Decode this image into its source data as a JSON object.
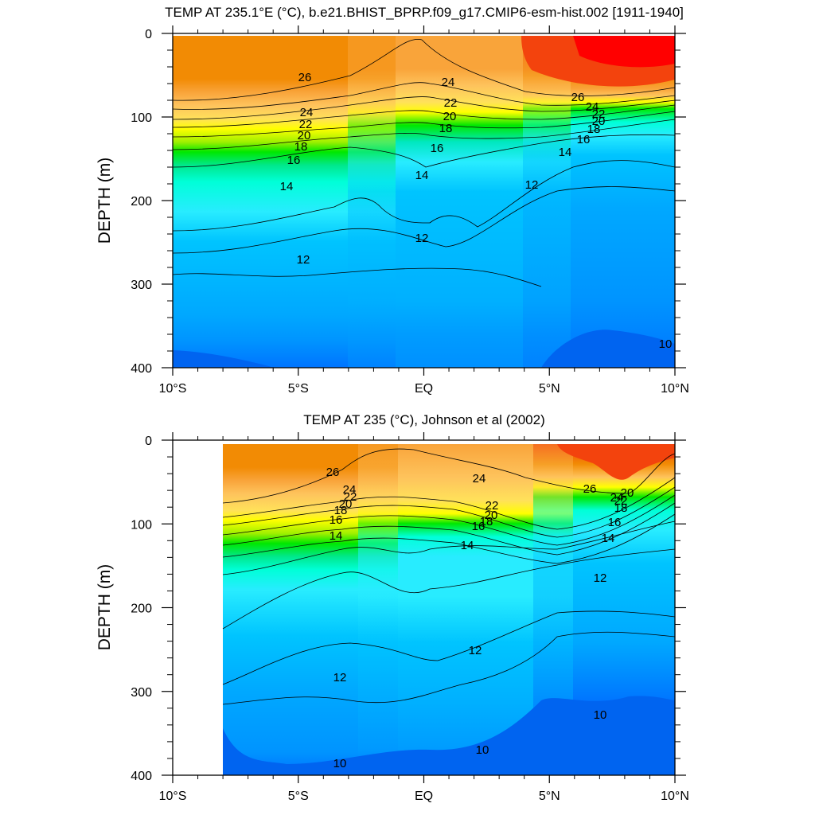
{
  "chart_data": [
    {
      "type": "heatmap",
      "title": "TEMP AT 235.1°E (°C), b.e21.BHIST_BPRP.f09_g17.CMIP6-esm-hist.002 [1911-1940]",
      "ylabel": "DEPTH (m)",
      "xlim": [
        -10,
        10
      ],
      "ylim": [
        400,
        0
      ],
      "x_ticks": [
        {
          "value": -10,
          "label": "10°S"
        },
        {
          "value": -5,
          "label": "5°S"
        },
        {
          "value": 0,
          "label": "EQ"
        },
        {
          "value": 5,
          "label": "5°N"
        },
        {
          "value": 10,
          "label": "10°N"
        }
      ],
      "y_ticks": [
        0,
        100,
        200,
        300,
        400
      ],
      "data_xlim": [
        -10,
        10
      ],
      "contour_labels": [
        {
          "label": "26",
          "x": -4.8,
          "depth": 55
        },
        {
          "label": "24",
          "x": -4.7,
          "depth": 95
        },
        {
          "label": "22",
          "x": -4.8,
          "depth": 110
        },
        {
          "label": "20",
          "x": -4.9,
          "depth": 123
        },
        {
          "label": "18",
          "x": -5.0,
          "depth": 137
        },
        {
          "label": "16",
          "x": -5.2,
          "depth": 152
        },
        {
          "label": "14",
          "x": -5.5,
          "depth": 183
        },
        {
          "label": "12",
          "x": -4.9,
          "depth": 268
        },
        {
          "label": "24",
          "x": 1.0,
          "depth": 60
        },
        {
          "label": "22",
          "x": 1.1,
          "depth": 84
        },
        {
          "label": "20",
          "x": 1.1,
          "depth": 100
        },
        {
          "label": "18",
          "x": 0.9,
          "depth": 115
        },
        {
          "label": "16",
          "x": 0.6,
          "depth": 137
        },
        {
          "label": "14",
          "x": -0.1,
          "depth": 168
        },
        {
          "label": "12",
          "x": -0.1,
          "depth": 245
        },
        {
          "label": "12",
          "x": 4.3,
          "depth": 180
        },
        {
          "label": "26",
          "x": 6.2,
          "depth": 76
        },
        {
          "label": "24",
          "x": 6.7,
          "depth": 87
        },
        {
          "label": "22",
          "x": 7.0,
          "depth": 96
        },
        {
          "label": "20",
          "x": 7.0,
          "depth": 105
        },
        {
          "label": "18",
          "x": 6.7,
          "depth": 115
        },
        {
          "label": "16",
          "x": 6.3,
          "depth": 127
        },
        {
          "label": "14",
          "x": 5.6,
          "depth": 140
        },
        {
          "label": "10",
          "x": 9.6,
          "depth": 370
        }
      ]
    },
    {
      "type": "heatmap",
      "title": "TEMP AT 235 (°C), Johnson et al (2002)",
      "ylabel": "DEPTH (m)",
      "xlim": [
        -10,
        10
      ],
      "ylim": [
        400,
        0
      ],
      "x_ticks": [
        {
          "value": -10,
          "label": "10°S"
        },
        {
          "value": -5,
          "label": "5°S"
        },
        {
          "value": 0,
          "label": "EQ"
        },
        {
          "value": 5,
          "label": "5°N"
        },
        {
          "value": 10,
          "label": "10°N"
        }
      ],
      "y_ticks": [
        0,
        100,
        200,
        300,
        400
      ],
      "data_xlim": [
        -8,
        10
      ],
      "contour_labels": [
        {
          "label": "26",
          "x": -3.6,
          "depth": 35
        },
        {
          "label": "24",
          "x": -2.9,
          "depth": 60
        },
        {
          "label": "22",
          "x": -2.9,
          "depth": 68
        },
        {
          "label": "20",
          "x": -3.1,
          "depth": 76
        },
        {
          "label": "18",
          "x": -3.3,
          "depth": 84
        },
        {
          "label": "16",
          "x": -3.5,
          "depth": 95
        },
        {
          "label": "14",
          "x": -3.5,
          "depth": 113
        },
        {
          "label": "12",
          "x": -3.3,
          "depth": 282
        },
        {
          "label": "10",
          "x": -3.3,
          "depth": 388
        },
        {
          "label": "24",
          "x": 2.2,
          "depth": 45
        },
        {
          "label": "22",
          "x": 2.7,
          "depth": 78
        },
        {
          "label": "20",
          "x": 2.7,
          "depth": 88
        },
        {
          "label": "18",
          "x": 2.5,
          "depth": 96
        },
        {
          "label": "16",
          "x": 2.2,
          "depth": 102
        },
        {
          "label": "14",
          "x": 1.7,
          "depth": 125
        },
        {
          "label": "12",
          "x": 2.0,
          "depth": 250
        },
        {
          "label": "10",
          "x": 2.3,
          "depth": 370
        },
        {
          "label": "26",
          "x": 6.6,
          "depth": 55
        },
        {
          "label": "24",
          "x": 7.3,
          "depth": 68
        },
        {
          "label": "22",
          "x": 7.6,
          "depth": 72
        },
        {
          "label": "20",
          "x": 7.9,
          "depth": 64
        },
        {
          "label": "18",
          "x": 7.6,
          "depth": 82
        },
        {
          "label": "16",
          "x": 7.3,
          "depth": 98
        },
        {
          "label": "14",
          "x": 7.3,
          "depth": 118
        },
        {
          "label": "12",
          "x": 7.1,
          "depth": 165
        },
        {
          "label": "10",
          "x": 7.0,
          "depth": 327
        }
      ]
    }
  ]
}
